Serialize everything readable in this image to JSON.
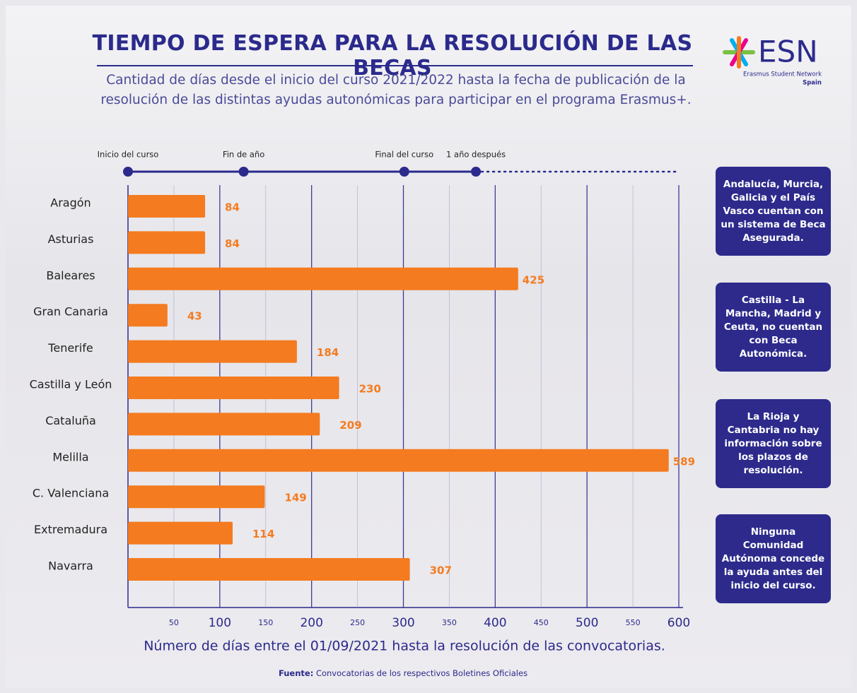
{
  "chart_data": {
    "type": "bar",
    "orientation": "horizontal",
    "title": "TIEMPO DE ESPERA PARA LA RESOLUCIÓN DE LAS BECAS",
    "subtitle": "Cantidad de días desde el inicio del curso 2021/2022 hasta la fecha de publicación de la resolución de las distintas ayudas autonómicas para participar en el programa Erasmus+.",
    "categories": [
      "Aragón",
      "Asturias",
      "Baleares",
      "Gran Canaria",
      "Tenerife",
      "Castilla y León",
      "Cataluña",
      "Melilla",
      "C. Valenciana",
      "Extremadura",
      "Navarra"
    ],
    "values": [
      84,
      84,
      425,
      43,
      184,
      230,
      209,
      589,
      149,
      114,
      307
    ],
    "color": "#f47b20",
    "xlim": [
      0,
      600
    ],
    "xticks": [
      50,
      100,
      150,
      200,
      250,
      300,
      350,
      400,
      450,
      500,
      550,
      600
    ],
    "grid": true,
    "xlabel": "Número de días entre el 01/09/2021 hasta la resolución de las convocatorias.",
    "timeline": {
      "labels": [
        "Inicio del curso",
        "Fin de año",
        "Final del curso",
        "1 año después"
      ],
      "values": [
        0,
        126,
        301,
        379
      ]
    },
    "notes": [
      "Andalucía, Murcia, Galicia y el País Vasco cuentan con un sistema de Beca Asegurada.",
      "Castilla - La Mancha, Madrid y Ceuta, no cuentan con Beca Autonómica.",
      "La Rioja y Cantabria no hay información sobre los plazos de resolución.",
      "Ninguna Comunidad Autónoma concede la ayuda antes del inicio del curso."
    ],
    "source": {
      "label": "Fuente:",
      "text": "Convocatorias de los respectivos Boletines Oficiales"
    },
    "logo": {
      "name": "ESN",
      "tagline": "Erasmus Student Network",
      "country": "Spain"
    }
  }
}
